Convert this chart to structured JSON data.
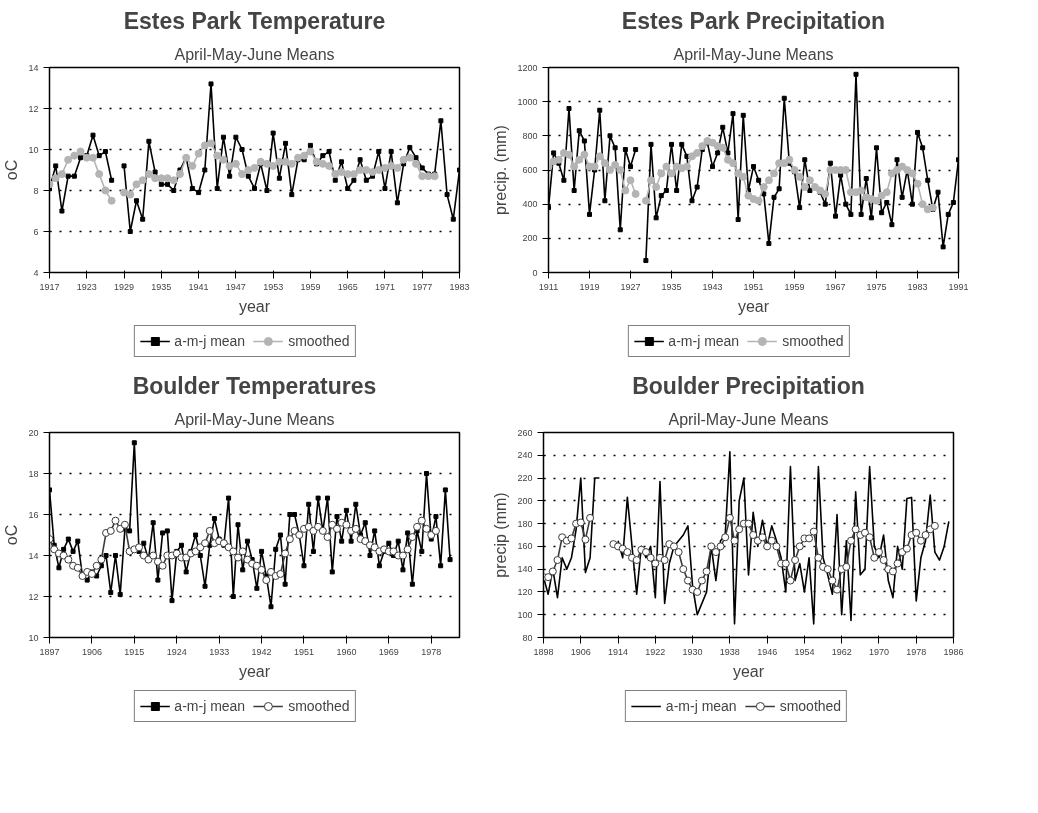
{
  "chart_data": [
    {
      "type": "line",
      "title": "Estes Park Temperature",
      "subtitle": "April-May-June Means",
      "xlabel": "year",
      "ylabel": "oC",
      "xlim": [
        1917,
        1983
      ],
      "xticks": [
        1917,
        1923,
        1929,
        1935,
        1941,
        1947,
        1953,
        1959,
        1965,
        1971,
        1977,
        1983
      ],
      "ylim": [
        4,
        14
      ],
      "yticks": [
        4,
        6,
        8,
        10,
        12,
        14
      ],
      "grid": "y",
      "legend": "bottom",
      "series": [
        {
          "name": "a-m-j mean",
          "color": "#000000",
          "marker": "square",
          "x": [
            1917,
            1918,
            1919,
            1920,
            1921,
            1922,
            1923,
            1924,
            1925,
            1926,
            1927,
            1928,
            1929,
            1930,
            1931,
            1932,
            1933,
            1934,
            1935,
            1936,
            1937,
            1938,
            1939,
            1940,
            1941,
            1942,
            1943,
            1944,
            1945,
            1946,
            1947,
            1948,
            1949,
            1950,
            1951,
            1952,
            1953,
            1954,
            1955,
            1956,
            1957,
            1958,
            1959,
            1960,
            1961,
            1962,
            1963,
            1964,
            1965,
            1966,
            1967,
            1968,
            1969,
            1970,
            1971,
            1972,
            1973,
            1974,
            1975,
            1976,
            1977,
            1978,
            1979,
            1980,
            1981,
            1982,
            1983
          ],
          "values": [
            8.1,
            9.2,
            7.0,
            8.7,
            8.7,
            9.6,
            9.7,
            10.7,
            9.7,
            9.9,
            8.5,
            null,
            9.2,
            6.0,
            7.5,
            6.6,
            10.4,
            8.9,
            8.3,
            8.3,
            8.0,
            9.0,
            9.6,
            8.1,
            7.9,
            9.0,
            13.2,
            8.1,
            10.6,
            8.7,
            10.6,
            10.0,
            8.7,
            8.1,
            9.3,
            8.0,
            10.8,
            8.6,
            10.3,
            7.8,
            9.5,
            9.5,
            10.2,
            9.3,
            9.7,
            9.9,
            8.5,
            9.4,
            8.1,
            8.5,
            9.5,
            8.5,
            8.7,
            9.9,
            8.1,
            9.9,
            7.4,
            9.3,
            10.1,
            9.6,
            9.1,
            8.8,
            8.8,
            11.4,
            7.8,
            6.6,
            9.0
          ]
        },
        {
          "name": "smoothed",
          "color": "#b4b4b4",
          "marker": "circle",
          "x": [
            1917,
            1918,
            1919,
            1920,
            1921,
            1922,
            1923,
            1924,
            1925,
            1926,
            1927,
            1928,
            1929,
            1930,
            1931,
            1932,
            1933,
            1934,
            1935,
            1936,
            1937,
            1938,
            1939,
            1940,
            1941,
            1942,
            1943,
            1944,
            1945,
            1946,
            1947,
            1948,
            1949,
            1950,
            1951,
            1952,
            1953,
            1954,
            1955,
            1956,
            1957,
            1958,
            1959,
            1960,
            1961,
            1962,
            1963,
            1964,
            1965,
            1966,
            1967,
            1968,
            1969,
            1970,
            1971,
            1972,
            1973,
            1974,
            1975,
            1976,
            1977,
            1978,
            1979
          ],
          "values": [
            8.3,
            8.6,
            8.8,
            9.5,
            9.7,
            9.9,
            9.6,
            9.6,
            8.8,
            8.0,
            7.5,
            null,
            7.9,
            7.8,
            8.3,
            8.5,
            8.8,
            8.6,
            8.6,
            8.6,
            8.5,
            8.8,
            9.6,
            9.2,
            9.8,
            10.2,
            10.3,
            9.7,
            9.5,
            9.2,
            9.3,
            8.8,
            9.0,
            9.1,
            9.4,
            9.3,
            9.2,
            9.4,
            9.4,
            9.3,
            9.6,
            9.7,
            9.9,
            9.4,
            9.3,
            9.2,
            8.8,
            8.9,
            8.8,
            8.8,
            9.0,
            9.0,
            8.9,
            9.0,
            9.1,
            9.2,
            9.1,
            9.5,
            9.6,
            9.3,
            8.7,
            8.7,
            8.7
          ]
        }
      ]
    },
    {
      "type": "line",
      "title": "Estes Park Precipitation",
      "subtitle": "April-May-June Means",
      "xlabel": "year",
      "ylabel": "precip. (mm)",
      "xlim": [
        1911,
        1991
      ],
      "xticks": [
        1911,
        1919,
        1927,
        1935,
        1943,
        1951,
        1959,
        1967,
        1975,
        1983,
        1991
      ],
      "ylim": [
        0,
        1200
      ],
      "yticks": [
        0,
        200,
        400,
        600,
        800,
        1000,
        1200
      ],
      "grid": "y",
      "legend": "bottom",
      "series": [
        {
          "name": "a-m-j mean",
          "color": "#000000",
          "marker": "square",
          "x": [
            1911,
            1912,
            1913,
            1914,
            1915,
            1916,
            1917,
            1918,
            1919,
            1920,
            1921,
            1922,
            1923,
            1924,
            1925,
            1926,
            1927,
            1928,
            1929,
            1930,
            1931,
            1932,
            1933,
            1934,
            1935,
            1936,
            1937,
            1938,
            1939,
            1940,
            1941,
            1942,
            1943,
            1944,
            1945,
            1946,
            1947,
            1948,
            1949,
            1950,
            1951,
            1952,
            1953,
            1954,
            1955,
            1956,
            1957,
            1958,
            1959,
            1960,
            1961,
            1962,
            1963,
            1964,
            1965,
            1966,
            1967,
            1968,
            1969,
            1970,
            1971,
            1972,
            1973,
            1974,
            1975,
            1976,
            1977,
            1978,
            1979,
            1980,
            1981,
            1982,
            1983,
            1984,
            1985,
            1986,
            1987,
            1988,
            1989,
            1990,
            1991
          ],
          "values": [
            380,
            700,
            640,
            540,
            960,
            480,
            830,
            770,
            340,
            600,
            950,
            420,
            800,
            730,
            250,
            720,
            620,
            720,
            null,
            70,
            750,
            320,
            450,
            480,
            750,
            480,
            750,
            680,
            420,
            500,
            720,
            760,
            620,
            700,
            850,
            700,
            930,
            310,
            920,
            480,
            620,
            540,
            460,
            170,
            440,
            490,
            1020,
            640,
            590,
            380,
            660,
            480,
            500,
            470,
            400,
            640,
            330,
            570,
            400,
            340,
            1160,
            340,
            550,
            320,
            730,
            350,
            410,
            280,
            660,
            440,
            600,
            400,
            820,
            730,
            540,
            370,
            470,
            150,
            340,
            410,
            660
          ]
        },
        {
          "name": "smoothed",
          "color": "#b4b4b4",
          "marker": "circle",
          "x": [
            1911,
            1912,
            1913,
            1914,
            1915,
            1916,
            1917,
            1918,
            1919,
            1920,
            1921,
            1922,
            1923,
            1924,
            1925,
            1926,
            1927,
            1928,
            1929,
            1930,
            1931,
            1932,
            1933,
            1934,
            1935,
            1936,
            1937,
            1938,
            1939,
            1940,
            1941,
            1942,
            1943,
            1944,
            1945,
            1946,
            1947,
            1948,
            1949,
            1950,
            1951,
            1952,
            1953,
            1954,
            1955,
            1956,
            1957,
            1958,
            1959,
            1960,
            1961,
            1962,
            1963,
            1964,
            1965,
            1966,
            1967,
            1968,
            1969,
            1970,
            1971,
            1972,
            1973,
            1974,
            1975,
            1976,
            1977,
            1978,
            1979,
            1980,
            1981,
            1982,
            1983,
            1984,
            1985,
            1986
          ],
          "values": [
            620,
            650,
            660,
            700,
            690,
            620,
            660,
            690,
            620,
            620,
            680,
            640,
            600,
            630,
            600,
            480,
            540,
            460,
            null,
            420,
            540,
            500,
            580,
            620,
            580,
            620,
            610,
            620,
            680,
            700,
            740,
            770,
            760,
            740,
            730,
            660,
            640,
            580,
            560,
            450,
            430,
            420,
            500,
            540,
            580,
            640,
            640,
            660,
            600,
            560,
            500,
            540,
            500,
            480,
            460,
            600,
            600,
            600,
            600,
            470,
            470,
            480,
            440,
            430,
            420,
            450,
            470,
            580,
            600,
            620,
            600,
            580,
            520,
            400,
            370,
            380
          ]
        }
      ]
    },
    {
      "type": "line",
      "title": "Boulder Temperatures",
      "subtitle": "April-May-June Means",
      "xlabel": "year",
      "ylabel": "oC",
      "xlim": [
        1897,
        1984
      ],
      "xticks": [
        1897,
        1906,
        1915,
        1924,
        1933,
        1942,
        1951,
        1960,
        1969,
        1978
      ],
      "ylim": [
        10,
        20
      ],
      "yticks": [
        10,
        12,
        14,
        16,
        18,
        20
      ],
      "grid": "y",
      "legend": "bottom",
      "series": [
        {
          "name": "a-m-j mean",
          "color": "#000000",
          "marker": "square",
          "x": [
            1897,
            1898,
            1899,
            1900,
            1901,
            1902,
            1903,
            1904,
            1905,
            1906,
            1907,
            1908,
            1909,
            1910,
            1911,
            1912,
            1913,
            1914,
            1915,
            1916,
            1917,
            1918,
            1919,
            1920,
            1921,
            1922,
            1923,
            1924,
            1925,
            1926,
            1927,
            1928,
            1929,
            1930,
            1931,
            1932,
            1933,
            1934,
            1935,
            1936,
            1937,
            1938,
            1939,
            1940,
            1941,
            1942,
            1943,
            1944,
            1945,
            1946,
            1947,
            1948,
            1949,
            1950,
            1951,
            1952,
            1953,
            1954,
            1955,
            1956,
            1957,
            1958,
            1959,
            1960,
            1961,
            1962,
            1963,
            1964,
            1965,
            1966,
            1967,
            1968,
            1969,
            1970,
            1971,
            1972,
            1973,
            1974,
            1975,
            1976,
            1977,
            1978,
            1979,
            1980,
            1981,
            1982
          ],
          "values": [
            17.2,
            14.5,
            13.4,
            14.3,
            14.8,
            14.2,
            14.7,
            13.0,
            12.8,
            13.2,
            13.0,
            13.5,
            14.0,
            12.2,
            14.0,
            12.1,
            15.3,
            15.2,
            19.5,
            14.2,
            14.6,
            13.8,
            15.6,
            12.8,
            15.1,
            15.2,
            11.8,
            14.2,
            14.5,
            13.2,
            14.2,
            15.0,
            14.0,
            12.5,
            14.5,
            15.8,
            14.8,
            14.5,
            16.8,
            12.0,
            15.5,
            13.3,
            14.7,
            13.8,
            12.4,
            14.2,
            13.0,
            11.5,
            14.3,
            15.0,
            12.6,
            16.0,
            16.0,
            15.0,
            13.5,
            16.5,
            14.2,
            16.8,
            15.2,
            16.8,
            13.2,
            15.9,
            14.7,
            16.2,
            14.7,
            16.5,
            15.0,
            15.6,
            14.0,
            15.2,
            13.5,
            14.2,
            14.6,
            14.0,
            14.7,
            13.3,
            15.1,
            12.6,
            15.2,
            14.2,
            18.0,
            14.8,
            15.9,
            13.5,
            17.2,
            13.8
          ]
        },
        {
          "name": "smoothed",
          "color": "#3c3c3c",
          "marker": "circle",
          "x": [
            1897,
            1898,
            1899,
            1900,
            1901,
            1902,
            1903,
            1904,
            1905,
            1906,
            1907,
            1908,
            1909,
            1910,
            1911,
            1912,
            1913,
            1914,
            1915,
            1916,
            1917,
            1918,
            1919,
            1920,
            1921,
            1922,
            1923,
            1924,
            1925,
            1926,
            1927,
            1928,
            1929,
            1930,
            1931,
            1932,
            1933,
            1934,
            1935,
            1936,
            1937,
            1938,
            1939,
            1940,
            1941,
            1942,
            1943,
            1944,
            1945,
            1946,
            1947,
            1948,
            1949,
            1950,
            1951,
            1952,
            1953,
            1954,
            1955,
            1956,
            1957,
            1958,
            1959,
            1960,
            1961,
            1962,
            1963,
            1964,
            1965,
            1966,
            1967,
            1968,
            1969,
            1970,
            1971,
            1972,
            1973,
            1974,
            1975,
            1976,
            1977,
            1978,
            1979
          ],
          "values": [
            14.8,
            14.3,
            14.1,
            14.0,
            13.8,
            13.5,
            13.4,
            13.0,
            13.2,
            13.1,
            13.5,
            13.8,
            15.1,
            15.2,
            15.7,
            15.3,
            15.5,
            14.2,
            14.3,
            14.4,
            14.0,
            13.8,
            14.0,
            13.7,
            13.5,
            14.0,
            14.0,
            14.1,
            13.9,
            13.9,
            14.1,
            14.2,
            14.4,
            14.6,
            15.2,
            14.6,
            14.7,
            14.6,
            14.4,
            14.2,
            13.9,
            14.2,
            13.8,
            13.6,
            13.5,
            13.3,
            12.8,
            13.2,
            13.0,
            13.1,
            14.1,
            14.8,
            15.2,
            15.0,
            15.3,
            15.4,
            15.2,
            15.4,
            15.2,
            14.9,
            15.5,
            15.3,
            15.6,
            15.5,
            15.2,
            15.3,
            14.8,
            14.7,
            14.5,
            14.4,
            14.2,
            14.3,
            14.2,
            14.2,
            14.0,
            14.0,
            14.3,
            14.9,
            15.4,
            15.7,
            15.3,
            15.0,
            15.2
          ]
        }
      ]
    },
    {
      "type": "line",
      "title": "Boulder Precipitation",
      "subtitle": "April-May-June Means",
      "xlabel": "year",
      "ylabel": "precip (mm)",
      "xlim": [
        1898,
        1986
      ],
      "xticks": [
        1898,
        1906,
        1914,
        1922,
        1930,
        1938,
        1946,
        1954,
        1962,
        1970,
        1978,
        1986
      ],
      "ylim": [
        80,
        260
      ],
      "yticks": [
        80,
        100,
        120,
        140,
        160,
        180,
        200,
        220,
        240,
        260
      ],
      "grid": "y",
      "legend": "bottom",
      "series": [
        {
          "name": "a-m-j mean",
          "color": "#000000",
          "marker": "none",
          "x": [
            1898,
            1899,
            1900,
            1901,
            1902,
            1903,
            1904,
            1905,
            1906,
            1907,
            1908,
            1909,
            1910,
            1911,
            1912,
            1913,
            1914,
            1915,
            1916,
            1917,
            1918,
            1919,
            1920,
            1921,
            1922,
            1923,
            1924,
            1925,
            1926,
            1927,
            1928,
            1929,
            1930,
            1931,
            1932,
            1933,
            1934,
            1935,
            1936,
            1937,
            1938,
            1939,
            1940,
            1941,
            1942,
            1943,
            1944,
            1945,
            1946,
            1947,
            1948,
            1949,
            1950,
            1951,
            1952,
            1953,
            1954,
            1955,
            1956,
            1957,
            1958,
            1959,
            1960,
            1961,
            1962,
            1963,
            1964,
            1965,
            1966,
            1967,
            1968,
            1969,
            1970,
            1971,
            1972,
            1973,
            1974,
            1975,
            1976,
            1977,
            1978,
            1979,
            1980,
            1981,
            1982,
            1983,
            1984,
            1985
          ],
          "values": [
            133,
            118,
            140,
            115,
            150,
            140,
            150,
            175,
            220,
            137,
            150,
            220,
            220,
            null,
            null,
            null,
            165,
            150,
            203,
            160,
            118,
            160,
            150,
            160,
            115,
            217,
            110,
            145,
            160,
            165,
            170,
            178,
            125,
            100,
            110,
            120,
            160,
            130,
            165,
            170,
            243,
            92,
            200,
            220,
            135,
            190,
            160,
            183,
            160,
            178,
            165,
            150,
            120,
            230,
            130,
            145,
            120,
            150,
            92,
            230,
            150,
            135,
            118,
            188,
            100,
            165,
            95,
            208,
            135,
            140,
            230,
            160,
            150,
            170,
            130,
            115,
            160,
            140,
            202,
            203,
            112,
            150,
            165,
            205,
            155,
            148,
            160,
            182
          ]
        },
        {
          "name": "smoothed",
          "color": "#3c3c3c",
          "marker": "circle",
          "x": [
            1898,
            1899,
            1900,
            1901,
            1902,
            1903,
            1904,
            1905,
            1906,
            1907,
            1908,
            1909,
            1910,
            1911,
            1912,
            1913,
            1914,
            1915,
            1916,
            1917,
            1918,
            1919,
            1920,
            1921,
            1922,
            1923,
            1924,
            1925,
            1926,
            1927,
            1928,
            1929,
            1930,
            1931,
            1932,
            1933,
            1934,
            1935,
            1936,
            1937,
            1938,
            1939,
            1940,
            1941,
            1942,
            1943,
            1944,
            1945,
            1946,
            1947,
            1948,
            1949,
            1950,
            1951,
            1952,
            1953,
            1954,
            1955,
            1956,
            1957,
            1958,
            1959,
            1960,
            1961,
            1962,
            1963,
            1964,
            1965,
            1966,
            1967,
            1968,
            1969,
            1970,
            1971,
            1972,
            1973,
            1974,
            1975,
            1976,
            1977,
            1978,
            1979,
            1980,
            1981,
            1982
          ],
          "values": [
            133,
            133,
            138,
            148,
            168,
            165,
            167,
            180,
            181,
            166,
            185,
            null,
            null,
            null,
            null,
            162,
            160,
            158,
            155,
            150,
            148,
            157,
            155,
            150,
            145,
            150,
            148,
            162,
            160,
            155,
            140,
            130,
            122,
            120,
            130,
            138,
            160,
            155,
            160,
            168,
            185,
            165,
            175,
            180,
            180,
            170,
            165,
            168,
            160,
            165,
            160,
            145,
            145,
            130,
            148,
            160,
            167,
            167,
            173,
            150,
            142,
            140,
            130,
            122,
            140,
            142,
            165,
            175,
            170,
            172,
            168,
            150,
            155,
            148,
            140,
            138,
            145,
            155,
            158,
            170,
            172,
            165,
            170,
            175,
            178
          ]
        }
      ]
    }
  ]
}
